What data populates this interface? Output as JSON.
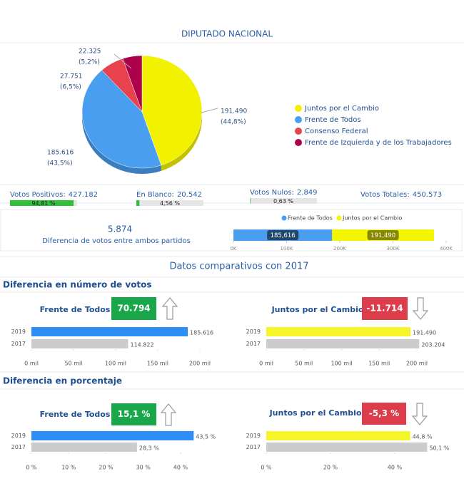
{
  "chart_data": [
    {
      "type": "pie",
      "title": "DIPUTADO NACIONAL",
      "categories": [
        "Juntos por el Cambio",
        "Frente de Todos",
        "Consenso Federal",
        "Frente de Izquierda y de los Trabajadores"
      ],
      "values": [
        191490,
        185616,
        27751,
        22325
      ],
      "value_labels": [
        "191.490",
        "185.616",
        "27.751",
        "22.325"
      ],
      "percent_labels": [
        "(44,8%)",
        "(43,5%)",
        "(6,5%)",
        "(5,2%)"
      ],
      "colors": [
        "#f2f200",
        "#4a9ef0",
        "#e8424f",
        "#ad004a"
      ]
    },
    {
      "type": "stacked_barh",
      "title": "5.874",
      "subtitle": "Diferencia de votos entre ambos partidos",
      "series": [
        {
          "name": "Frente de Todos",
          "color": "#4a9ef0",
          "values": [
            185616
          ],
          "value_labels": [
            "185,616"
          ]
        },
        {
          "name": "Juntos por el Cambio",
          "color": "#f5f500",
          "values": [
            191490
          ],
          "value_labels": [
            "191,490"
          ]
        }
      ],
      "xlim": [
        0,
        400000
      ],
      "xticks": [
        {
          "value": 0,
          "label": "0K"
        },
        {
          "value": 100000,
          "label": "100K"
        },
        {
          "value": 200000,
          "label": "200K"
        },
        {
          "value": 300000,
          "label": "300K"
        },
        {
          "value": 400000,
          "label": "400K"
        }
      ]
    },
    {
      "type": "barh",
      "title": "Frente de Todos",
      "badge": "70.794",
      "badge_color": "#1aa64b",
      "trend": "up",
      "categories": [
        "2019",
        "2017"
      ],
      "values": [
        185616,
        114822
      ],
      "value_labels": [
        "185.616",
        "114.822"
      ],
      "colors": [
        "#2f8ef5",
        "#cccccc"
      ],
      "xlim": [
        0,
        200000
      ],
      "xticks": [
        {
          "value": 0,
          "label": "0 mil"
        },
        {
          "value": 50000,
          "label": "50 mil"
        },
        {
          "value": 100000,
          "label": "100 mil"
        },
        {
          "value": 150000,
          "label": "150 mil"
        },
        {
          "value": 200000,
          "label": "200 mil"
        }
      ]
    },
    {
      "type": "barh",
      "title": "Juntos por el Cambio",
      "badge": "-11.714",
      "badge_color": "#dd3d4b",
      "trend": "down",
      "categories": [
        "2019",
        "2017"
      ],
      "values": [
        191490,
        203204
      ],
      "value_labels": [
        "191.490",
        "203.204"
      ],
      "colors": [
        "#f5f52a",
        "#cccccc"
      ],
      "xlim": [
        0,
        200000
      ],
      "xticks": [
        {
          "value": 0,
          "label": "0 mil"
        },
        {
          "value": 50000,
          "label": "50 mil"
        },
        {
          "value": 100000,
          "label": "100 mil"
        },
        {
          "value": 150000,
          "label": "150 mil"
        },
        {
          "value": 200000,
          "label": "200 mil"
        }
      ]
    },
    {
      "type": "barh",
      "title": "Frente de Todos",
      "badge": "15,1 %",
      "badge_color": "#1aa64b",
      "trend": "up",
      "categories": [
        "2019",
        "2017"
      ],
      "values": [
        43.5,
        28.3
      ],
      "value_labels": [
        "43,5 %",
        "28,3 %"
      ],
      "colors": [
        "#2f8ef5",
        "#cccccc"
      ],
      "xlim": [
        0,
        40
      ],
      "xticks": [
        {
          "value": 0,
          "label": "0 %"
        },
        {
          "value": 10,
          "label": "10 %"
        },
        {
          "value": 20,
          "label": "20 %"
        },
        {
          "value": 30,
          "label": "30 %"
        },
        {
          "value": 40,
          "label": "40 %"
        }
      ]
    },
    {
      "type": "barh",
      "title": "Juntos por el Cambio",
      "badge": "-5,3 %",
      "badge_color": "#dd3d4b",
      "trend": "down",
      "categories": [
        "2019",
        "2017"
      ],
      "values": [
        44.8,
        50.1
      ],
      "value_labels": [
        "44,8 %",
        "50,1 %"
      ],
      "colors": [
        "#f5f52a",
        "#cccccc"
      ],
      "xlim": [
        0,
        40
      ],
      "xticks": [
        {
          "value": 0,
          "label": "0 %"
        },
        {
          "value": 20,
          "label": "20 %"
        },
        {
          "value": 40,
          "label": "40 %"
        }
      ]
    }
  ],
  "kpis": [
    {
      "label": "Votos Positivos:",
      "value": "427.182",
      "percent": 94.81,
      "percent_label": "94,81 %",
      "xlim": [
        0,
        100
      ]
    },
    {
      "label": "En Blanco:",
      "value": "20.542",
      "percent": 4.56,
      "percent_label": "4,56 %",
      "xlim": [
        0,
        100
      ]
    },
    {
      "label": "Votos Nulos:",
      "value": "2.849",
      "percent": 0.63,
      "percent_label": "0,63 %",
      "xlim": [
        0,
        100
      ]
    },
    {
      "label": "Votos Totales:",
      "value": "450.573"
    }
  ],
  "comparison_title": "Datos comparativos con 2017",
  "sections": [
    "Diferencia en número de votos",
    "Diferencia en porcentaje"
  ]
}
